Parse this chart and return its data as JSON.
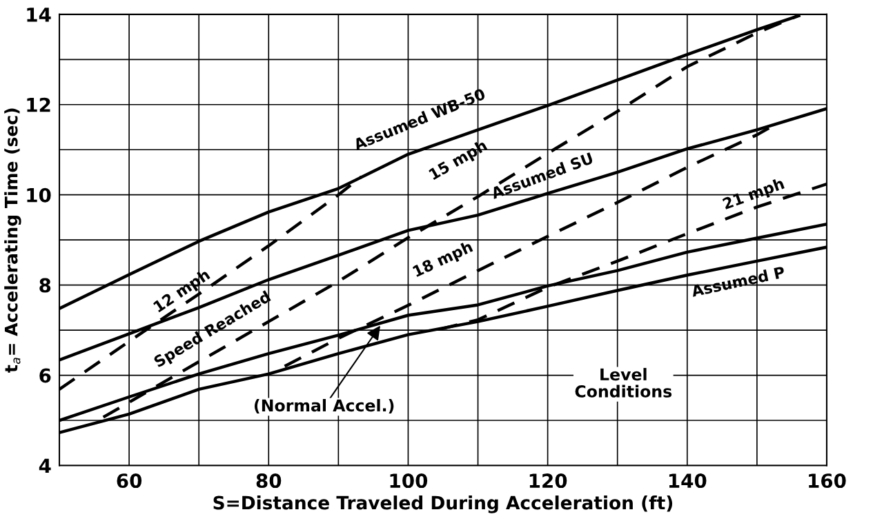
{
  "chart_data": {
    "type": "line",
    "xlabel": "S=Distance Traveled During Acceleration (ft)",
    "ylabel": "t$_{a}$= Accelerating Time (sec)",
    "xlim": [
      50,
      160
    ],
    "ylim": [
      4,
      14
    ],
    "xticks": [
      {
        "value": 50,
        "label": null
      },
      60,
      {
        "value": 70,
        "label": null
      },
      80,
      {
        "value": 90,
        "label": null
      },
      100,
      {
        "value": 110,
        "label": null
      },
      120,
      {
        "value": 130,
        "label": null
      },
      140,
      {
        "value": 150,
        "label": null
      },
      160
    ],
    "yticks": [
      4,
      {
        "value": 5,
        "label": null
      },
      6,
      {
        "value": 7,
        "label": null
      },
      8,
      {
        "value": 9,
        "label": null
      },
      10,
      {
        "value": 11,
        "label": null
      },
      12,
      {
        "value": 13,
        "label": null
      },
      14
    ],
    "grid": true,
    "marker": "none",
    "series": [
      {
        "name": "Assumed WB-50",
        "color": "#000000",
        "line_style": "solid",
        "x": [
          50,
          60,
          70,
          80,
          90,
          100,
          120,
          140,
          150,
          156
        ],
        "values": [
          7.48,
          8.23,
          8.97,
          9.62,
          10.14,
          10.9,
          11.98,
          13.11,
          13.66,
          13.97
        ]
      },
      {
        "name": "Assumed SU",
        "color": "#000000",
        "line_style": "solid",
        "x": [
          50,
          60,
          70,
          80,
          90,
          100,
          110,
          120,
          130,
          140,
          150,
          160
        ],
        "values": [
          6.34,
          6.92,
          7.5,
          8.12,
          8.66,
          9.21,
          9.55,
          10.03,
          10.5,
          11.02,
          11.44,
          11.91
        ]
      },
      {
        "color": "#000000",
        "line_style": "solid",
        "x": [
          50,
          60,
          70,
          80,
          90,
          100,
          110,
          120,
          130,
          140,
          150,
          160
        ],
        "values": [
          5.0,
          5.52,
          6.03,
          6.48,
          6.89,
          7.33,
          7.56,
          7.98,
          8.32,
          8.73,
          9.04,
          9.35
        ]
      },
      {
        "name": "Assumed P",
        "color": "#000000",
        "line_style": "solid",
        "x": [
          50,
          60,
          70,
          80,
          90,
          100,
          110,
          120,
          130,
          140,
          150,
          160
        ],
        "values": [
          4.73,
          5.14,
          5.69,
          6.03,
          6.48,
          6.9,
          7.19,
          7.53,
          7.88,
          8.22,
          8.53,
          8.84
        ]
      },
      {
        "name": "12 mph",
        "color": "#000000",
        "line_style": "dashed",
        "x": [
          50,
          60,
          70,
          80,
          90,
          93.3
        ],
        "values": [
          5.69,
          6.75,
          7.8,
          8.87,
          10.0,
          10.4
        ]
      },
      {
        "name": "15 mph",
        "color": "#000000",
        "line_style": "dashed",
        "x": [
          56.3,
          70,
          80,
          90,
          100,
          110,
          120,
          130,
          140,
          150,
          155.9
        ],
        "values": [
          5.07,
          6.3,
          7.19,
          8.08,
          9.05,
          9.96,
          10.92,
          11.85,
          12.84,
          13.59,
          13.97
        ]
      },
      {
        "name": "18 mph",
        "color": "#000000",
        "line_style": "dashed",
        "x": [
          82.3,
          90,
          100,
          110,
          120,
          130,
          140,
          150,
          152.4
        ],
        "values": [
          6.2,
          6.82,
          7.55,
          8.32,
          9.08,
          9.83,
          10.61,
          11.33,
          11.54
        ]
      },
      {
        "name": "21 mph",
        "color": "#000000",
        "line_style": "dashed",
        "x": [
          104.5,
          110,
          120,
          130,
          140,
          150,
          160
        ],
        "values": [
          7.02,
          7.23,
          7.95,
          8.53,
          9.14,
          9.73,
          10.24
        ]
      }
    ],
    "annotations": [
      "Speed Reached",
      {
        "text": "(Normal Accel.)",
        "x": 96,
        "y": 7.1
      },
      "Level\nConditions"
    ]
  }
}
